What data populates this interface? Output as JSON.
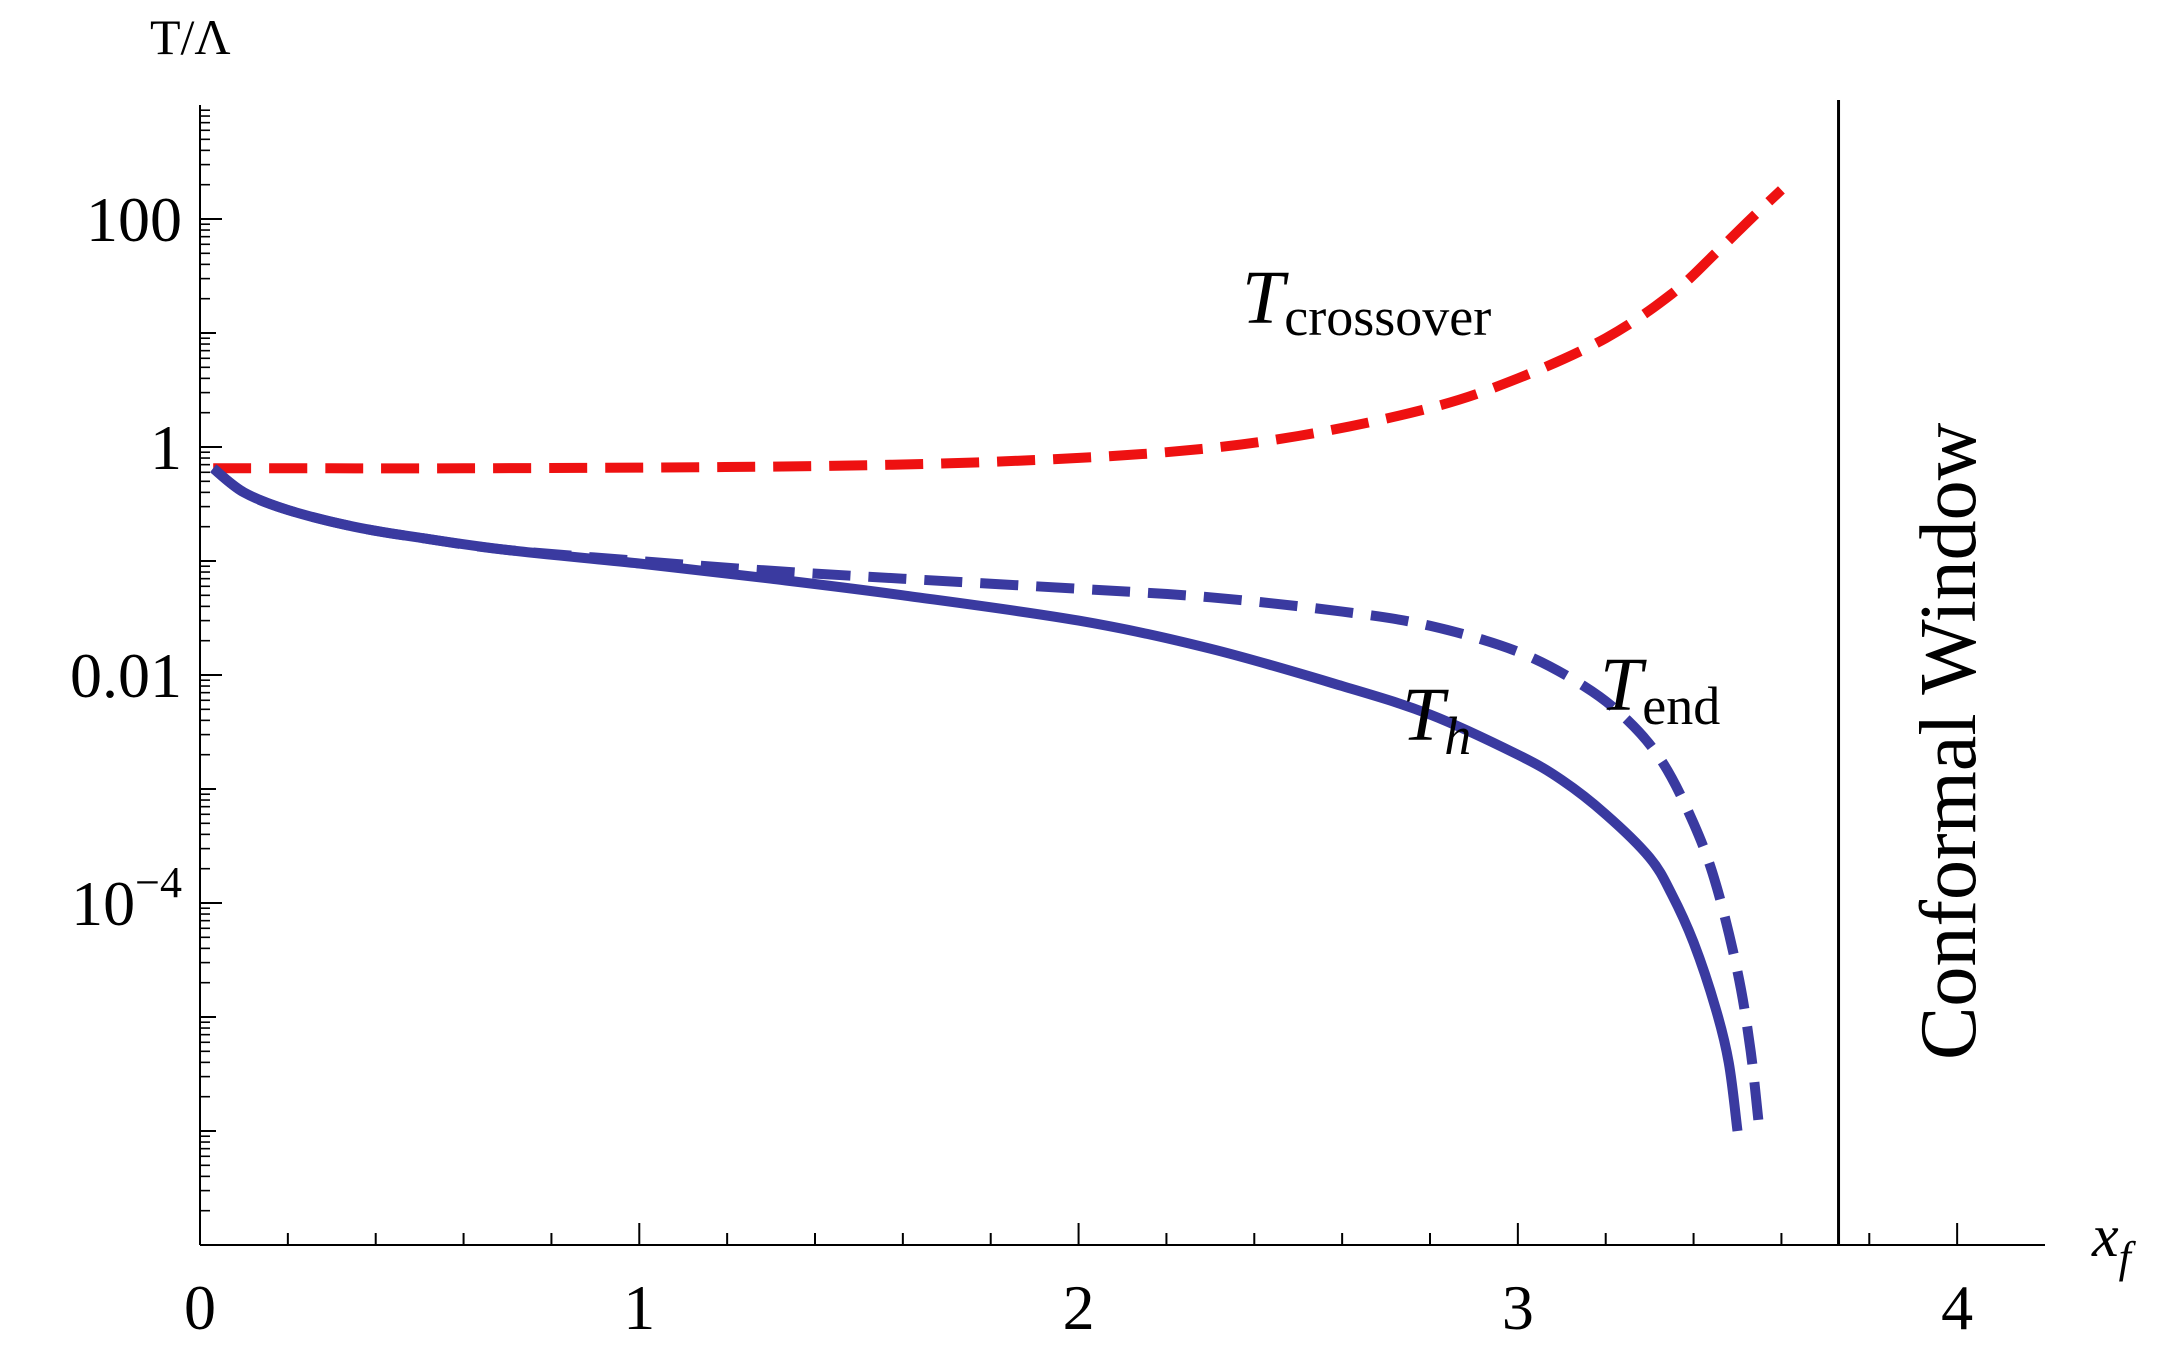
{
  "chart_data": {
    "type": "line",
    "title": "",
    "xlabel": "x",
    "xlabel_sub": "f",
    "ylabel": "T/Λ",
    "y_scale": "log",
    "xlim": [
      0,
      4.2
    ],
    "ylim": [
      1e-07,
      1000
    ],
    "grid": false,
    "x_ticks": [
      {
        "value": 0,
        "label": "0"
      },
      {
        "value": 1,
        "label": "1"
      },
      {
        "value": 2,
        "label": "2"
      },
      {
        "value": 3,
        "label": "3"
      },
      {
        "value": 4,
        "label": "4"
      }
    ],
    "y_ticks": [
      {
        "value": 100,
        "label": "100"
      },
      {
        "value": 1,
        "label": "1"
      },
      {
        "value": 0.01,
        "label": "0.01"
      },
      {
        "value": 0.0001,
        "label": "10",
        "sup": "−4"
      }
    ],
    "series": [
      {
        "name": "T_crossover",
        "color": "#ee1111",
        "style": "dashed",
        "x": [
          0.03,
          0.3,
          0.6,
          1.0,
          1.4,
          1.8,
          2.2,
          2.5,
          2.8,
          3.0,
          3.2,
          3.35,
          3.45,
          3.53,
          3.6
        ],
        "y": [
          0.65,
          0.65,
          0.65,
          0.66,
          0.68,
          0.74,
          0.9,
          1.25,
          2.2,
          4.0,
          9.0,
          22,
          50,
          100,
          180
        ]
      },
      {
        "name": "T_h",
        "color": "#3a3aa0",
        "style": "solid",
        "x": [
          0.03,
          0.1,
          0.2,
          0.35,
          0.5,
          0.7,
          1.0,
          1.3,
          1.6,
          2.0,
          2.3,
          2.6,
          2.8,
          3.0,
          3.1,
          3.2,
          3.3,
          3.35,
          3.4,
          3.45,
          3.48,
          3.5
        ],
        "y": [
          0.65,
          0.4,
          0.28,
          0.2,
          0.16,
          0.125,
          0.095,
          0.07,
          0.05,
          0.03,
          0.017,
          0.008,
          0.0045,
          0.002,
          0.0012,
          0.0006,
          0.00025,
          0.00012,
          4.5e-05,
          1.2e-05,
          4e-06,
          1e-06
        ]
      },
      {
        "name": "T_end",
        "color": "#3a3aa0",
        "style": "dashed",
        "x": [
          0.03,
          0.1,
          0.2,
          0.35,
          0.5,
          0.7,
          1.0,
          1.3,
          1.6,
          2.0,
          2.3,
          2.6,
          2.8,
          3.0,
          3.15,
          3.25,
          3.33,
          3.4,
          3.45,
          3.5,
          3.53,
          3.55
        ],
        "y": [
          0.65,
          0.4,
          0.28,
          0.2,
          0.16,
          0.125,
          0.1,
          0.082,
          0.07,
          0.057,
          0.048,
          0.036,
          0.027,
          0.016,
          0.008,
          0.004,
          0.0017,
          0.0005,
          0.00015,
          2.5e-05,
          5e-06,
          1e-06
        ]
      }
    ],
    "annotations": [
      {
        "main": "T",
        "sub": "crossover"
      },
      {
        "main": "T",
        "sub": "h"
      },
      {
        "main": "T",
        "sub": "end"
      },
      {
        "text": "Conformal Window"
      }
    ],
    "vertical_line": {
      "x": 3.73,
      "color": "#000000"
    }
  }
}
